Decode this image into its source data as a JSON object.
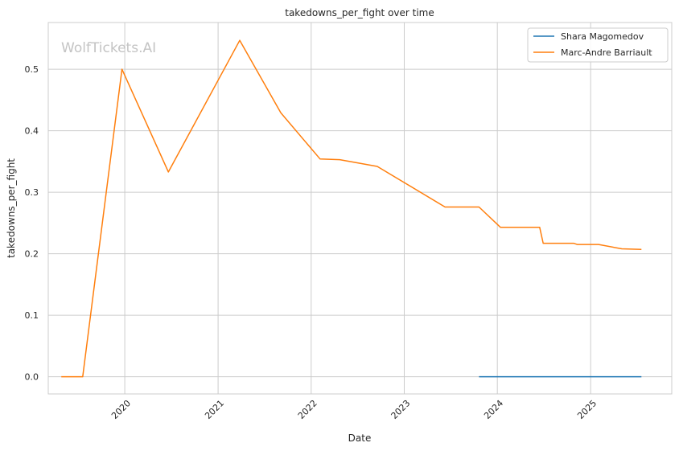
{
  "watermark": "WolfTickets.AI",
  "chart_data": {
    "type": "line",
    "title": "takedowns_per_fight over time",
    "xlabel": "Date",
    "ylabel": "takedowns_per_fight",
    "x_type": "date",
    "xlim": [
      "2019-03-07",
      "2025-11-15"
    ],
    "ylim": [
      -0.028,
      0.576
    ],
    "x_ticks": [
      {
        "label": "2020",
        "date": "2020-01-01"
      },
      {
        "label": "2021",
        "date": "2021-01-01"
      },
      {
        "label": "2022",
        "date": "2022-01-01"
      },
      {
        "label": "2023",
        "date": "2023-01-01"
      },
      {
        "label": "2024",
        "date": "2024-01-01"
      },
      {
        "label": "2025",
        "date": "2025-01-01"
      }
    ],
    "y_ticks": [
      {
        "label": "0.0",
        "value": 0.0
      },
      {
        "label": "0.1",
        "value": 0.1
      },
      {
        "label": "0.2",
        "value": 0.2
      },
      {
        "label": "0.3",
        "value": 0.3
      },
      {
        "label": "0.4",
        "value": 0.4
      },
      {
        "label": "0.5",
        "value": 0.5
      }
    ],
    "grid": true,
    "legend_position": "top-right",
    "series": [
      {
        "name": "Shara Magomedov",
        "color": "#1f77b4",
        "points": [
          {
            "x": "2023-10-21",
            "y": 0.0
          },
          {
            "x": "2024-03-09",
            "y": 0.0
          },
          {
            "x": "2024-06-22",
            "y": 0.0
          },
          {
            "x": "2024-10-26",
            "y": 0.0
          },
          {
            "x": "2025-07-19",
            "y": 0.0
          }
        ]
      },
      {
        "name": "Marc-Andre Barriault",
        "color": "#ff7f0e",
        "points": [
          {
            "x": "2019-04-27",
            "y": 0.0
          },
          {
            "x": "2019-07-20",
            "y": 0.0
          },
          {
            "x": "2019-12-21",
            "y": 0.5
          },
          {
            "x": "2020-06-20",
            "y": 0.333
          },
          {
            "x": "2021-03-27",
            "y": 0.547
          },
          {
            "x": "2021-09-04",
            "y": 0.429
          },
          {
            "x": "2022-02-05",
            "y": 0.354
          },
          {
            "x": "2022-04-23",
            "y": 0.353
          },
          {
            "x": "2022-09-17",
            "y": 0.342
          },
          {
            "x": "2023-06-10",
            "y": 0.276
          },
          {
            "x": "2023-10-21",
            "y": 0.276
          },
          {
            "x": "2024-01-13",
            "y": 0.243
          },
          {
            "x": "2024-06-15",
            "y": 0.243
          },
          {
            "x": "2024-06-29",
            "y": 0.217
          },
          {
            "x": "2024-10-26",
            "y": 0.217
          },
          {
            "x": "2024-11-09",
            "y": 0.215
          },
          {
            "x": "2025-02-01",
            "y": 0.215
          },
          {
            "x": "2025-05-03",
            "y": 0.208
          },
          {
            "x": "2025-07-19",
            "y": 0.207
          }
        ]
      }
    ]
  }
}
